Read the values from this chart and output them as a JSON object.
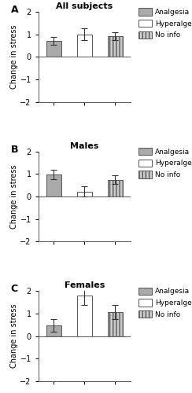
{
  "panels": [
    {
      "label": "A",
      "title": "All subjects",
      "bars": [
        {
          "group": "Analgesia",
          "value": 0.7,
          "error": 0.18,
          "hatch": "",
          "color": "#aaaaaa"
        },
        {
          "group": "Hyperalgesia",
          "value": 1.0,
          "error": 0.25,
          "hatch": "",
          "color": "#ffffff"
        },
        {
          "group": "No info",
          "value": 0.93,
          "error": 0.18,
          "hatch": "||||",
          "color": "#cccccc"
        }
      ]
    },
    {
      "label": "B",
      "title": "Males",
      "bars": [
        {
          "group": "Analgesia",
          "value": 0.97,
          "error": 0.2,
          "hatch": "",
          "color": "#aaaaaa"
        },
        {
          "group": "Hyperalgesia",
          "value": 0.22,
          "error": 0.22,
          "hatch": "",
          "color": "#ffffff"
        },
        {
          "group": "No info",
          "value": 0.75,
          "error": 0.18,
          "hatch": "||||",
          "color": "#cccccc"
        }
      ]
    },
    {
      "label": "C",
      "title": "Females",
      "bars": [
        {
          "group": "Analgesia",
          "value": 0.47,
          "error": 0.27,
          "hatch": "",
          "color": "#aaaaaa"
        },
        {
          "group": "Hyperalgesia",
          "value": 1.8,
          "error": 0.43,
          "hatch": "",
          "color": "#ffffff"
        },
        {
          "group": "No info",
          "value": 1.07,
          "error": 0.32,
          "hatch": "||||",
          "color": "#cccccc"
        }
      ]
    }
  ],
  "ylim": [
    -2,
    2
  ],
  "yticks": [
    -2,
    -1,
    0,
    1,
    2
  ],
  "ylabel": "Change in stress",
  "bar_width": 0.5,
  "bar_positions": [
    1,
    2,
    3
  ],
  "legend_labels": [
    "Analgesia",
    "Hyperalgesia",
    "No info"
  ],
  "legend_colors": [
    "#aaaaaa",
    "#ffffff",
    "#cccccc"
  ],
  "legend_hatches": [
    "",
    "",
    "||||"
  ],
  "background_color": "#ffffff",
  "edge_color": "#555555"
}
